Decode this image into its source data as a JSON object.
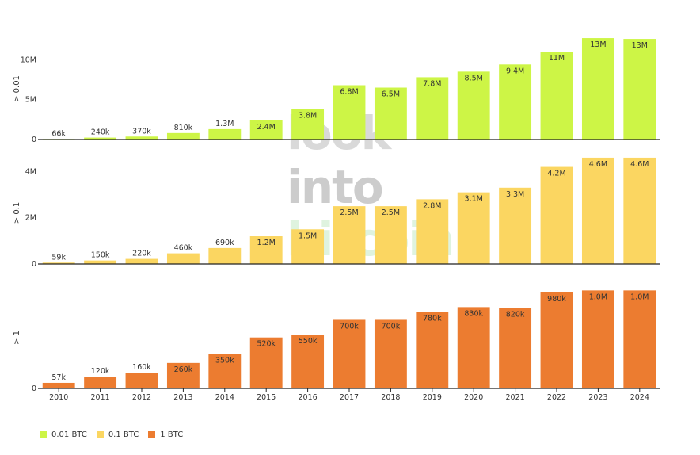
{
  "watermark": [
    "look",
    "into",
    "bitcoin"
  ],
  "legend": [
    {
      "label": "0.01 BTC",
      "color": "#cdf546"
    },
    {
      "label": "0.1 BTC",
      "color": "#fbd661"
    },
    {
      "label": "1 BTC",
      "color": "#ec7c30"
    }
  ],
  "chart_data": {
    "type": "bar",
    "categories": [
      "2010",
      "2011",
      "2012",
      "2013",
      "2014",
      "2015",
      "2016",
      "2017",
      "2018",
      "2019",
      "2020",
      "2021",
      "2022",
      "2023",
      "2024"
    ],
    "panels": [
      {
        "name": "0.01 BTC",
        "ylabel": "> 0.01",
        "color": "#cdf546",
        "ylim": [
          0,
          13500000
        ],
        "ticks": [
          {
            "v": 0,
            "label": "0"
          },
          {
            "v": 5000000,
            "label": "5M"
          },
          {
            "v": 10000000,
            "label": "10M"
          }
        ],
        "values": [
          66000,
          240000,
          370000,
          810000,
          1300000,
          2400000,
          3800000,
          6800000,
          6500000,
          7800000,
          8500000,
          9400000,
          11000000,
          12700000,
          12600000
        ],
        "labels": [
          "66k",
          "240k",
          "370k",
          "810k",
          "1.3M",
          "2.4M",
          "3.8M",
          "6.8M",
          "6.5M",
          "7.8M",
          "8.5M",
          "9.4M",
          "11M",
          "13M",
          "13M"
        ]
      },
      {
        "name": "0.1 BTC",
        "ylabel": "> 0.1",
        "color": "#fbd661",
        "ylim": [
          0,
          4700000
        ],
        "ticks": [
          {
            "v": 0,
            "label": "0"
          },
          {
            "v": 2000000,
            "label": "2M"
          },
          {
            "v": 4000000,
            "label": "4M"
          }
        ],
        "values": [
          59000,
          150000,
          220000,
          460000,
          690000,
          1200000,
          1500000,
          2500000,
          2500000,
          2800000,
          3100000,
          3300000,
          4200000,
          4600000,
          4600000
        ],
        "labels": [
          "59k",
          "150k",
          "220k",
          "460k",
          "690k",
          "1.2M",
          "1.5M",
          "2.5M",
          "2.5M",
          "2.8M",
          "3.1M",
          "3.3M",
          "4.2M",
          "4.6M",
          "4.6M"
        ]
      },
      {
        "name": "1 BTC",
        "ylabel": "> 1",
        "color": "#ec7c30",
        "ylim": [
          0,
          1100000
        ],
        "ticks": [
          {
            "v": 0,
            "label": "0"
          }
        ],
        "values": [
          57000,
          120000,
          160000,
          260000,
          350000,
          520000,
          550000,
          700000,
          700000,
          780000,
          830000,
          820000,
          980000,
          1000000,
          1000000
        ],
        "labels": [
          "57k",
          "120k",
          "160k",
          "260k",
          "350k",
          "520k",
          "550k",
          "700k",
          "700k",
          "780k",
          "830k",
          "820k",
          "980k",
          "1.0M",
          "1.0M"
        ]
      }
    ]
  }
}
